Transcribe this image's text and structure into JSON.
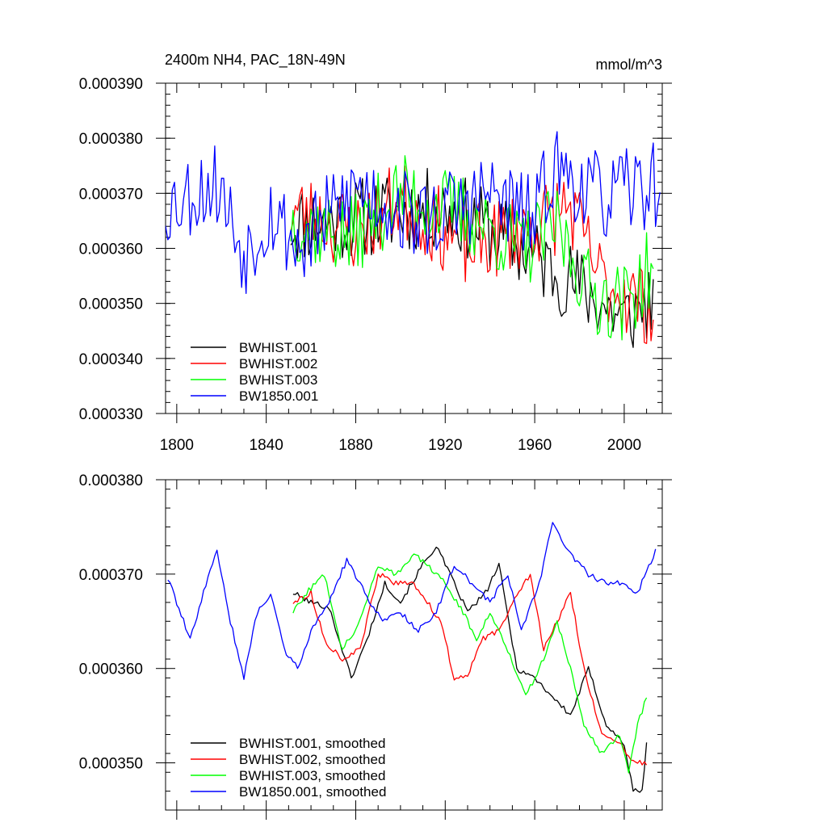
{
  "chart_data": [
    {
      "type": "line",
      "title": "2400m NH4, PAC_18N-49N",
      "units": "mmol/m^3",
      "xlim": [
        1795,
        2017
      ],
      "ylim": [
        0.00033,
        0.00039
      ],
      "x_ticks": [
        1800,
        1840,
        1880,
        1920,
        1960,
        2000
      ],
      "y_ticks": [
        "0.000330",
        "0.000340",
        "0.000350",
        "0.000360",
        "0.000370",
        "0.000380",
        "0.000390"
      ],
      "legend_position": "bottom-left",
      "series": [
        {
          "name": "BWHIST.001",
          "color": "#000000",
          "start": 1851,
          "end": 2013,
          "step": 1,
          "base": 0.0003655,
          "amp": 7.5e-06,
          "seed": 11,
          "trend": [
            [
              1851,
              0.0003645
            ],
            [
              1880,
              0.0003655
            ],
            [
              1920,
              0.0003675
            ],
            [
              1950,
              0.000361
            ],
            [
              1980,
              0.000353
            ],
            [
              2000,
              0.000347
            ],
            [
              2013,
              0.000351
            ]
          ]
        },
        {
          "name": "BWHIST.002",
          "color": "#ff0000",
          "start": 1851,
          "end": 2013,
          "step": 1,
          "base": 0.000364,
          "amp": 7.5e-06,
          "seed": 23,
          "trend": [
            [
              1851,
              0.000367
            ],
            [
              1880,
              0.000363
            ],
            [
              1900,
              0.000369
            ],
            [
              1930,
              0.00036
            ],
            [
              1965,
              0.000365
            ],
            [
              1975,
              0.000368
            ],
            [
              1990,
              0.000354
            ],
            [
              2013,
              0.000349
            ]
          ]
        },
        {
          "name": "BWHIST.003",
          "color": "#00ff00",
          "start": 1851,
          "end": 2013,
          "step": 1,
          "base": 0.000365,
          "amp": 7.5e-06,
          "seed": 37,
          "trend": [
            [
              1851,
              0.000365
            ],
            [
              1878,
              0.000362
            ],
            [
              1900,
              0.00037
            ],
            [
              1930,
              0.000366
            ],
            [
              1955,
              0.00036
            ],
            [
              1970,
              0.000364
            ],
            [
              1985,
              0.000352
            ],
            [
              2000,
              0.00035
            ],
            [
              2013,
              0.000357
            ]
          ]
        },
        {
          "name": "BW1850.001",
          "color": "#0000ff",
          "start": 1795,
          "end": 2016,
          "step": 1,
          "base": 0.000366,
          "amp": 8e-06,
          "seed": 53,
          "trend": [
            [
              1795,
              0.000368
            ],
            [
              1818,
              0.000372
            ],
            [
              1830,
              0.000359
            ],
            [
              1842,
              0.000367
            ],
            [
              1855,
              0.00036
            ],
            [
              1880,
              0.000371
            ],
            [
              1910,
              0.000365
            ],
            [
              1940,
              0.00037
            ],
            [
              1960,
              0.000365
            ],
            [
              1968,
              0.000375
            ],
            [
              1990,
              0.000369
            ],
            [
              2016,
              0.000372
            ]
          ]
        }
      ]
    },
    {
      "type": "line",
      "xlim": [
        1795,
        2017
      ],
      "ylim": [
        0.000345,
        0.00038
      ],
      "y_ticks": [
        "0.000350",
        "0.000360",
        "0.000370",
        "0.000380"
      ],
      "legend_position": "bottom-left",
      "series": [
        {
          "name": "BWHIST.001, smoothed",
          "color": "#000000",
          "start": 1852,
          "end": 2010,
          "step": 1,
          "amp": 3e-07,
          "seed": 101,
          "points": [
            [
              1852,
              0.000368
            ],
            [
              1860,
              0.000367
            ],
            [
              1868,
              0.0003665
            ],
            [
              1878,
              0.000359
            ],
            [
              1885,
              0.000363
            ],
            [
              1893,
              0.000369
            ],
            [
              1900,
              0.000367
            ],
            [
              1910,
              0.000371
            ],
            [
              1916,
              0.000373
            ],
            [
              1922,
              0.00037
            ],
            [
              1930,
              0.000366
            ],
            [
              1938,
              0.000368
            ],
            [
              1944,
              0.000371
            ],
            [
              1952,
              0.00036
            ],
            [
              1960,
              0.000359
            ],
            [
              1968,
              0.000357
            ],
            [
              1976,
              0.000355
            ],
            [
              1984,
              0.00036
            ],
            [
              1992,
              0.000354
            ],
            [
              2000,
              0.000352
            ],
            [
              2004,
              0.000347
            ],
            [
              2008,
              0.000347
            ],
            [
              2010,
              0.000352
            ]
          ]
        },
        {
          "name": "BWHIST.002, smoothed",
          "color": "#ff0000",
          "start": 1852,
          "end": 2010,
          "step": 1,
          "amp": 3e-07,
          "seed": 113,
          "points": [
            [
              1852,
              0.000367
            ],
            [
              1860,
              0.000368
            ],
            [
              1866,
              0.000363
            ],
            [
              1874,
              0.000361
            ],
            [
              1882,
              0.000362
            ],
            [
              1890,
              0.00037
            ],
            [
              1898,
              0.000369
            ],
            [
              1906,
              0.000369
            ],
            [
              1912,
              0.000367
            ],
            [
              1918,
              0.000365
            ],
            [
              1924,
              0.000359
            ],
            [
              1930,
              0.000359
            ],
            [
              1936,
              0.000363
            ],
            [
              1944,
              0.000364
            ],
            [
              1952,
              0.000368
            ],
            [
              1958,
              0.00037
            ],
            [
              1964,
              0.000362
            ],
            [
              1970,
              0.000365
            ],
            [
              1976,
              0.000368
            ],
            [
              1982,
              0.00036
            ],
            [
              1990,
              0.000353
            ],
            [
              1998,
              0.000352
            ],
            [
              2004,
              0.00035
            ],
            [
              2010,
              0.00035
            ]
          ]
        },
        {
          "name": "BWHIST.003, smoothed",
          "color": "#00ff00",
          "start": 1852,
          "end": 2010,
          "step": 1,
          "amp": 3e-07,
          "seed": 127,
          "points": [
            [
              1852,
              0.000366
            ],
            [
              1858,
              0.000368
            ],
            [
              1866,
              0.00037
            ],
            [
              1874,
              0.000362
            ],
            [
              1882,
              0.000365
            ],
            [
              1890,
              0.000371
            ],
            [
              1898,
              0.00037
            ],
            [
              1906,
              0.000372
            ],
            [
              1912,
              0.000371
            ],
            [
              1920,
              0.000369
            ],
            [
              1928,
              0.000366
            ],
            [
              1934,
              0.000363
            ],
            [
              1940,
              0.000366
            ],
            [
              1948,
              0.000362
            ],
            [
              1956,
              0.000357
            ],
            [
              1964,
              0.000361
            ],
            [
              1970,
              0.000365
            ],
            [
              1976,
              0.00036
            ],
            [
              1982,
              0.000354
            ],
            [
              1990,
              0.000351
            ],
            [
              1998,
              0.000353
            ],
            [
              2002,
              0.000349
            ],
            [
              2006,
              0.000354
            ],
            [
              2010,
              0.000357
            ]
          ]
        },
        {
          "name": "BW1850.001, smoothed",
          "color": "#0000ff",
          "start": 1796,
          "end": 2014,
          "step": 1,
          "amp": 3e-07,
          "seed": 139,
          "points": [
            [
              1796,
              0.0003695
            ],
            [
              1800,
              0.000367
            ],
            [
              1806,
              0.000363
            ],
            [
              1812,
              0.000368
            ],
            [
              1818,
              0.0003725
            ],
            [
              1824,
              0.000365
            ],
            [
              1830,
              0.000359
            ],
            [
              1836,
              0.000366
            ],
            [
              1842,
              0.000368
            ],
            [
              1848,
              0.000362
            ],
            [
              1854,
              0.00036
            ],
            [
              1860,
              0.000364
            ],
            [
              1868,
              0.000367
            ],
            [
              1876,
              0.0003715
            ],
            [
              1884,
              0.000368
            ],
            [
              1892,
              0.000365
            ],
            [
              1900,
              0.000366
            ],
            [
              1908,
              0.000364
            ],
            [
              1916,
              0.000366
            ],
            [
              1924,
              0.000371
            ],
            [
              1932,
              0.000369
            ],
            [
              1940,
              0.000367
            ],
            [
              1948,
              0.00037
            ],
            [
              1954,
              0.000364
            ],
            [
              1962,
              0.000369
            ],
            [
              1968,
              0.0003755
            ],
            [
              1976,
              0.000372
            ],
            [
              1984,
              0.00037
            ],
            [
              1992,
              0.000369
            ],
            [
              2000,
              0.000369
            ],
            [
              2006,
              0.000368
            ],
            [
              2014,
              0.0003725
            ]
          ]
        }
      ]
    }
  ]
}
